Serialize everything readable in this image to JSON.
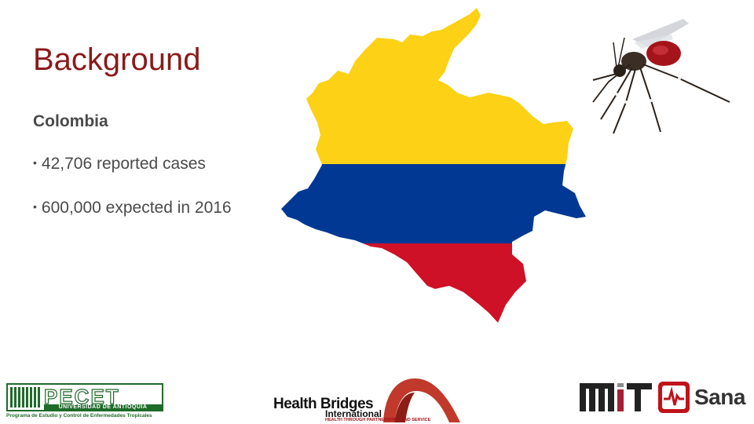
{
  "slide": {
    "title": "Background",
    "subheading": "Colombia",
    "bullets": [
      "42,706 reported cases",
      "600,000 expected in 2016"
    ],
    "bullet_glyph": "•"
  },
  "images": {
    "map": {
      "name": "colombia-flag-map",
      "colors": [
        "#fcd116",
        "#003893",
        "#ce1126"
      ]
    },
    "photo": {
      "name": "mosquito-photo"
    }
  },
  "logos": {
    "pecet": {
      "wordmark": "PECET",
      "university": "UNIVERSIDAD DE ANTIOQUIA",
      "program": "Programa de Estudio y Control de Enfermedades Tropicales",
      "color": "#1f6b2a"
    },
    "hbi": {
      "name": "Health Bridges",
      "sub": "International",
      "tagline": "HEALTH THROUGH PARTNERSHIPS AND SERVICE",
      "color": "#c0392b"
    },
    "mit": {
      "name": "MIT"
    },
    "sana": {
      "name": "Sana",
      "color": "#c0121a"
    }
  },
  "colors": {
    "title": "#8b1a1a",
    "text": "#4a4a4a"
  }
}
